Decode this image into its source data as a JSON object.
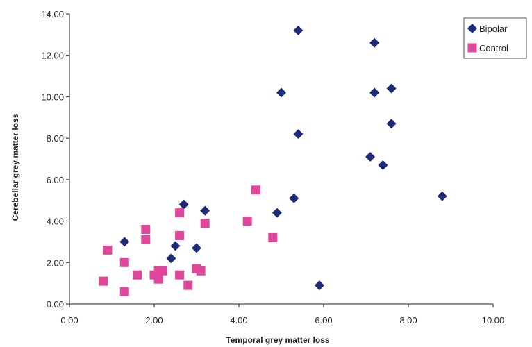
{
  "chart_data": {
    "type": "scatter",
    "title": "",
    "xlabel": "Temporal grey matter loss",
    "ylabel": "Cerebellar grey matter loss",
    "xlim": [
      0,
      10
    ],
    "ylim": [
      0,
      14
    ],
    "x_ticks": [
      "0.00",
      "2.00",
      "4.00",
      "6.00",
      "8.00",
      "10.00"
    ],
    "y_ticks": [
      "0.00",
      "2.00",
      "4.00",
      "6.00",
      "8.00",
      "10.00",
      "12.00",
      "14.00"
    ],
    "grid": false,
    "legend": "top-right",
    "series": [
      {
        "name": "Bipolar",
        "marker": "diamond",
        "color": "#1c2a78",
        "points": [
          [
            5.4,
            13.2
          ],
          [
            7.2,
            12.6
          ],
          [
            5.0,
            10.2
          ],
          [
            7.2,
            10.2
          ],
          [
            7.6,
            10.4
          ],
          [
            5.4,
            8.2
          ],
          [
            7.6,
            8.7
          ],
          [
            7.1,
            7.1
          ],
          [
            7.4,
            6.7
          ],
          [
            8.8,
            5.2
          ],
          [
            5.3,
            5.1
          ],
          [
            4.9,
            4.4
          ],
          [
            2.7,
            4.8
          ],
          [
            3.2,
            4.5
          ],
          [
            1.3,
            3.0
          ],
          [
            2.5,
            2.8
          ],
          [
            3.0,
            2.7
          ],
          [
            2.4,
            2.2
          ],
          [
            5.9,
            0.9
          ]
        ]
      },
      {
        "name": "Control",
        "marker": "square",
        "color": "#e0479a",
        "points": [
          [
            4.4,
            5.5
          ],
          [
            2.6,
            4.4
          ],
          [
            4.2,
            4.0
          ],
          [
            3.2,
            3.9
          ],
          [
            1.8,
            3.6
          ],
          [
            2.6,
            3.3
          ],
          [
            4.8,
            3.2
          ],
          [
            1.8,
            3.1
          ],
          [
            0.9,
            2.6
          ],
          [
            1.3,
            2.0
          ],
          [
            3.0,
            1.7
          ],
          [
            3.1,
            1.6
          ],
          [
            2.1,
            1.6
          ],
          [
            2.2,
            1.6
          ],
          [
            1.6,
            1.4
          ],
          [
            2.0,
            1.4
          ],
          [
            2.6,
            1.4
          ],
          [
            2.1,
            1.2
          ],
          [
            0.8,
            1.1
          ],
          [
            2.8,
            0.9
          ],
          [
            1.3,
            0.6
          ]
        ]
      }
    ]
  }
}
